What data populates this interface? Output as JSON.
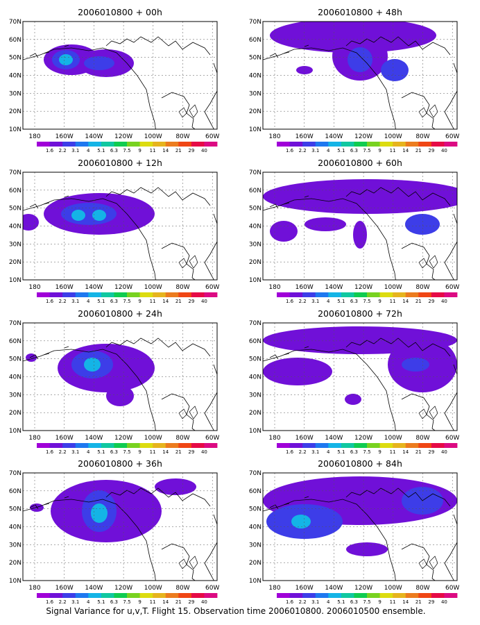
{
  "panels": [
    {
      "title": "2006010800 + 00h"
    },
    {
      "title": "2006010800 + 48h"
    },
    {
      "title": "2006010800 + 12h"
    },
    {
      "title": "2006010800 + 60h"
    },
    {
      "title": "2006010800 + 24h"
    },
    {
      "title": "2006010800 + 72h"
    },
    {
      "title": "2006010800 + 36h"
    },
    {
      "title": "2006010800 + 84h"
    }
  ],
  "axes": {
    "lat_labels": [
      "10N",
      "20N",
      "30N",
      "40N",
      "50N",
      "60N",
      "70N"
    ],
    "lon_labels": [
      "180",
      "160W",
      "140W",
      "120W",
      "100W",
      "80W",
      "60W"
    ]
  },
  "colorbar": {
    "labels": [
      "1.6",
      "2.2",
      "3.1",
      "4",
      "5.1",
      "6.3",
      "7.5",
      "9",
      "11",
      "14",
      "21",
      "29",
      "40"
    ],
    "colors": [
      "#a000d8",
      "#7010d8",
      "#3d3de8",
      "#1e78f0",
      "#14b4e6",
      "#10c8a0",
      "#10cc50",
      "#78d220",
      "#dcdc10",
      "#e6b41e",
      "#ec7c1e",
      "#f04614",
      "#e60a46",
      "#dc0a82"
    ]
  },
  "footer": "Signal Variance for u,v,T. Flight 15. Observation time 2006010800. 2006010500 ensemble."
}
